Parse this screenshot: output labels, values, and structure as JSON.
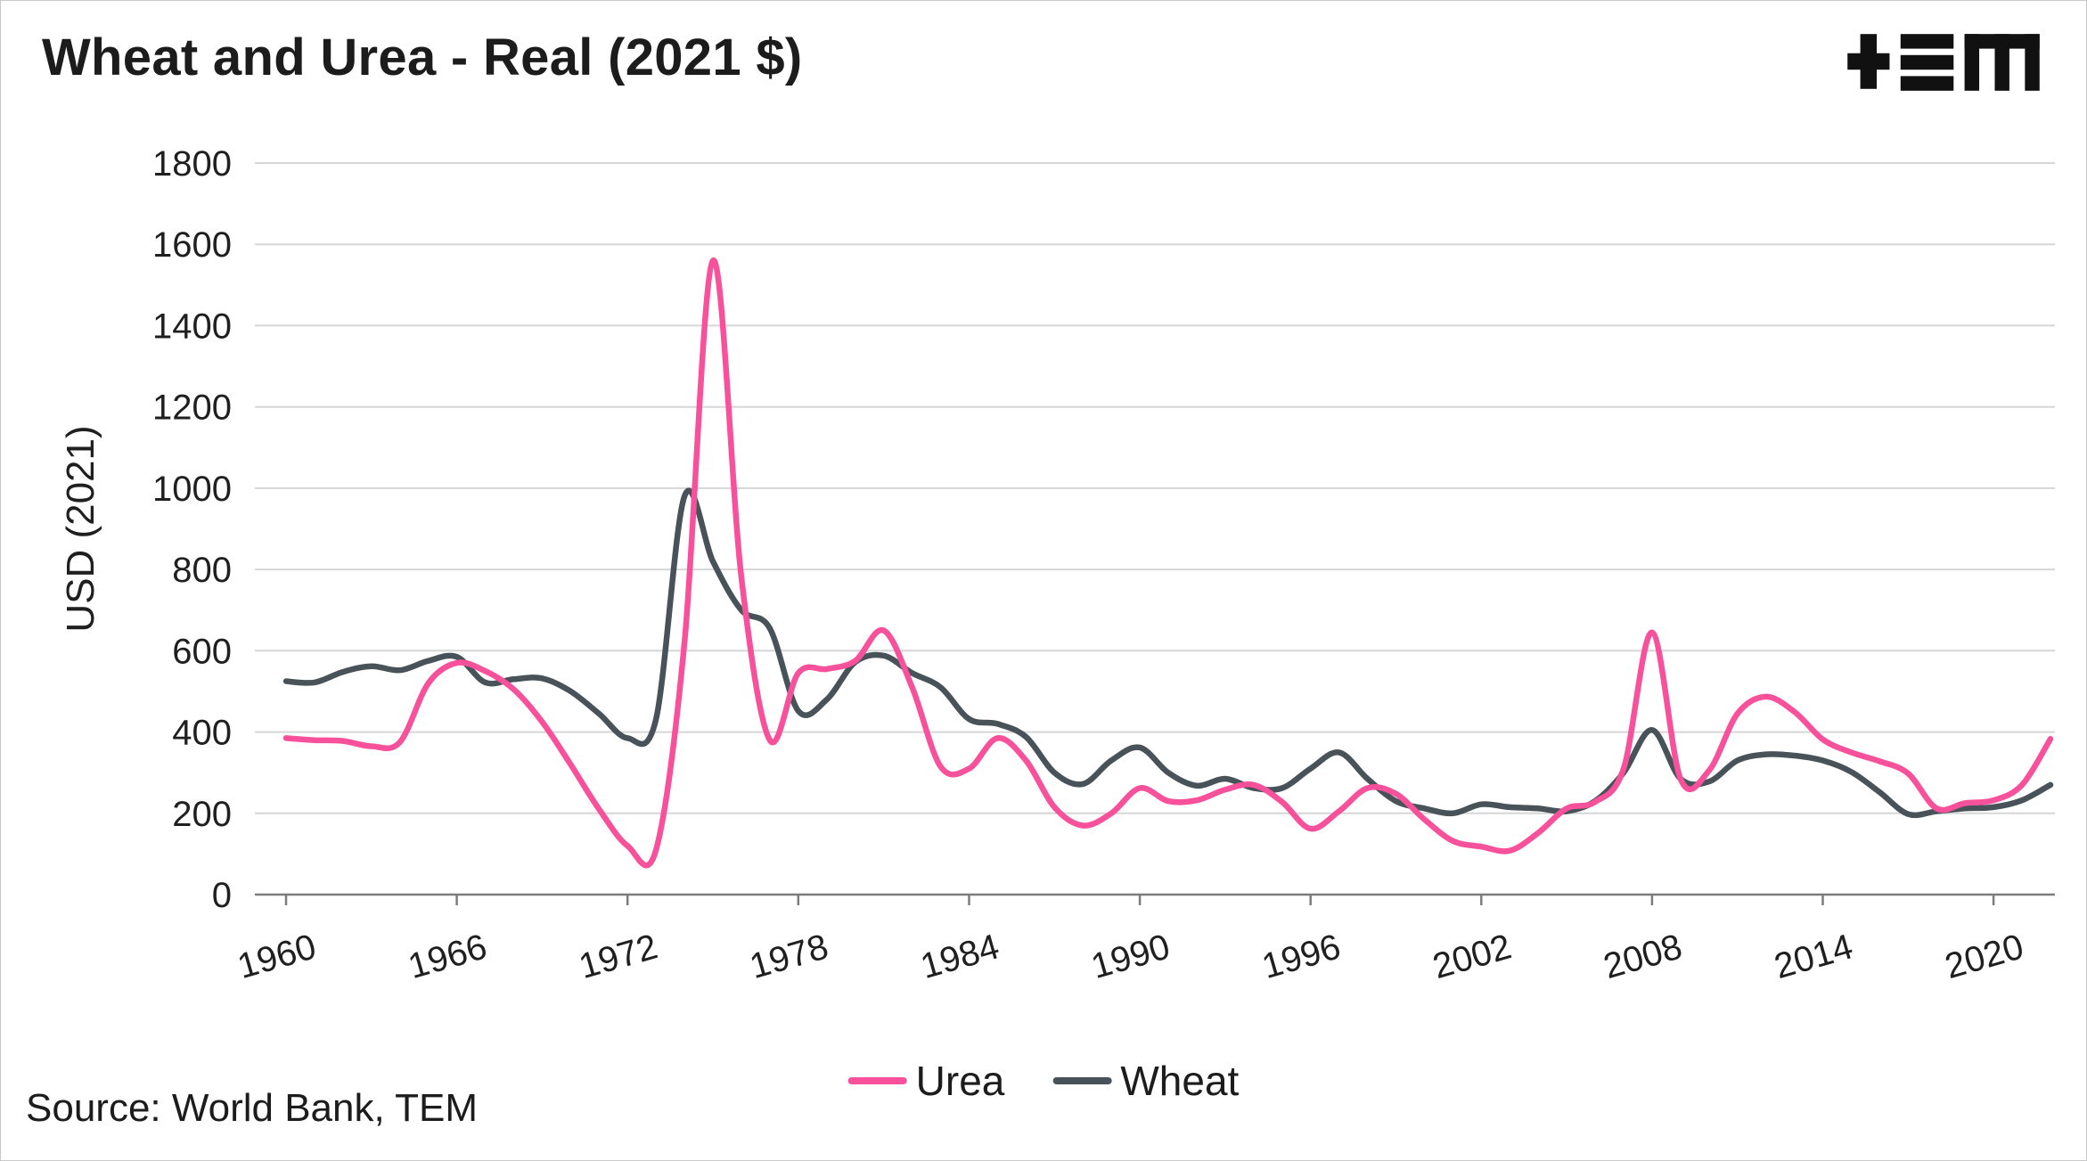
{
  "source_note": "Source: World Bank, TEM",
  "chart_data": {
    "type": "line",
    "title": "Wheat and Urea - Real (2021 $)",
    "ylabel": "USD (2021)",
    "ylim": [
      0,
      1800
    ],
    "ytick_step": 200,
    "yticks": [
      0,
      200,
      400,
      600,
      800,
      1000,
      1200,
      1400,
      1600,
      1800
    ],
    "xticks": [
      1960,
      1966,
      1972,
      1978,
      1984,
      1990,
      1996,
      2002,
      2008,
      2014,
      2020
    ],
    "grid": "horizontal",
    "grid_color": "#d6d6d6",
    "axis_color": "#7c7c7c",
    "text_color": "#1f1f1f",
    "legend_position": "bottom-center",
    "x": [
      1960,
      1961,
      1962,
      1963,
      1964,
      1965,
      1966,
      1967,
      1968,
      1969,
      1970,
      1971,
      1972,
      1973,
      1974,
      1975,
      1976,
      1977,
      1978,
      1979,
      1980,
      1981,
      1982,
      1983,
      1984,
      1985,
      1986,
      1987,
      1988,
      1989,
      1990,
      1991,
      1992,
      1993,
      1994,
      1995,
      1996,
      1997,
      1998,
      1999,
      2000,
      2001,
      2002,
      2003,
      2004,
      2005,
      2006,
      2007,
      2008,
      2009,
      2010,
      2011,
      2012,
      2013,
      2014,
      2015,
      2016,
      2017,
      2018,
      2019,
      2020,
      2021,
      2022
    ],
    "series": [
      {
        "name": "Urea",
        "color": "#F8519B",
        "values": [
          385,
          380,
          378,
          365,
          375,
          520,
          570,
          550,
          505,
          425,
          320,
          210,
          120,
          110,
          620,
          1560,
          780,
          380,
          545,
          555,
          575,
          650,
          510,
          315,
          310,
          385,
          330,
          215,
          170,
          200,
          262,
          230,
          232,
          258,
          270,
          228,
          162,
          205,
          262,
          248,
          185,
          132,
          118,
          108,
          152,
          212,
          228,
          310,
          645,
          285,
          305,
          445,
          487,
          450,
          382,
          350,
          328,
          298,
          212,
          225,
          232,
          270,
          383
        ]
      },
      {
        "name": "Wheat",
        "color": "#485359",
        "values": [
          525,
          522,
          548,
          562,
          552,
          575,
          585,
          522,
          530,
          532,
          500,
          445,
          385,
          432,
          980,
          820,
          700,
          655,
          452,
          480,
          572,
          588,
          545,
          510,
          432,
          420,
          388,
          300,
          272,
          330,
          362,
          300,
          268,
          285,
          262,
          262,
          310,
          350,
          285,
          230,
          212,
          200,
          222,
          215,
          212,
          205,
          230,
          300,
          405,
          285,
          278,
          330,
          345,
          342,
          330,
          302,
          252,
          198,
          205,
          212,
          215,
          232,
          270
        ]
      }
    ]
  }
}
